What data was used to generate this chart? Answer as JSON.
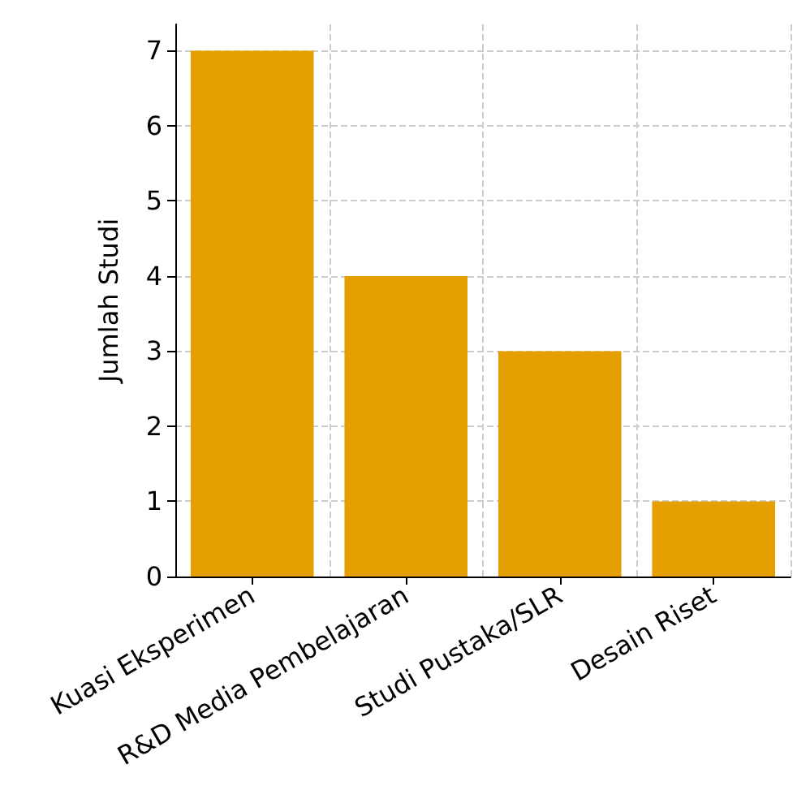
{
  "chart_data": {
    "type": "bar",
    "ylabel": "Jumlah Studi",
    "categories": [
      "Kuasi Eksperimen",
      "R&D Media Pembelajaran",
      "Studi Pustaka/SLR",
      "Desain Riset"
    ],
    "values": [
      7,
      4,
      3,
      1
    ],
    "color": "#e69f00",
    "ylim": [
      0,
      7.35
    ],
    "yticks": [
      0,
      1,
      2,
      3,
      4,
      5,
      6,
      7
    ],
    "grid": true
  }
}
